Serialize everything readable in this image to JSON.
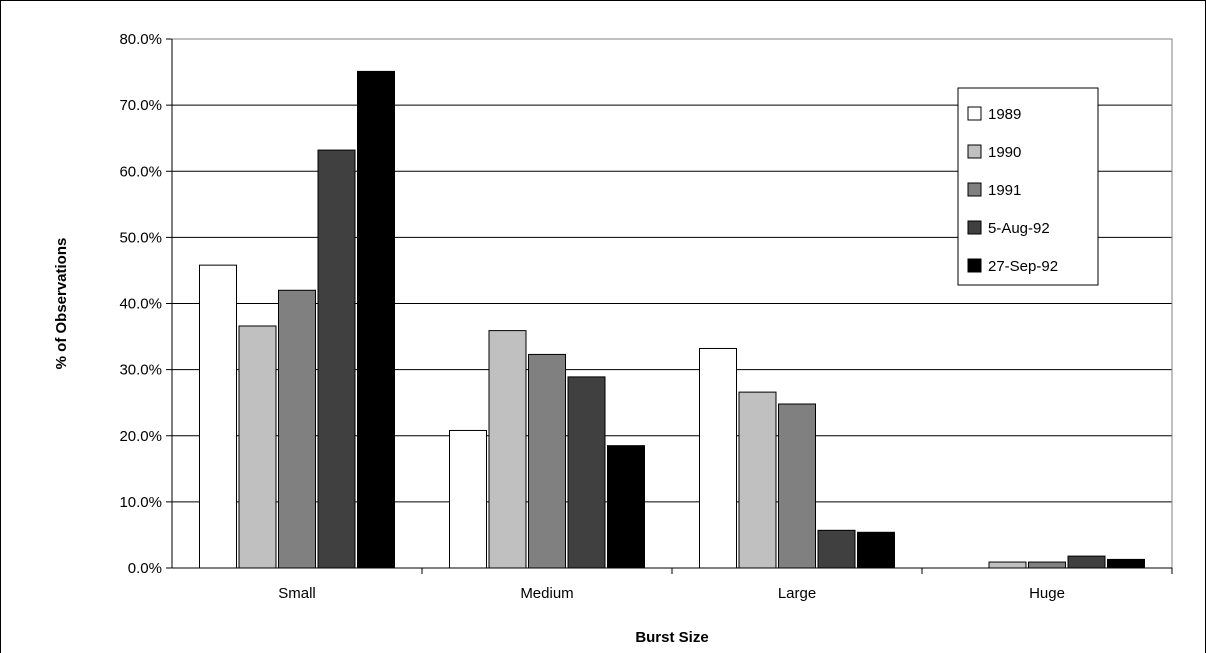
{
  "chart_data": {
    "type": "bar",
    "title": "",
    "xlabel": "Burst Size",
    "ylabel": "% of Observations",
    "categories": [
      "Small",
      "Medium",
      "Large",
      "Huge"
    ],
    "ylim": [
      0,
      80
    ],
    "yticks": [
      "0.0%",
      "10.0%",
      "20.0%",
      "30.0%",
      "40.0%",
      "50.0%",
      "60.0%",
      "70.0%",
      "80.0%"
    ],
    "grid": true,
    "legend_position": "top-right",
    "series": [
      {
        "name": "1989",
        "color": "#ffffff",
        "values": [
          45.8,
          20.8,
          33.2,
          0
        ]
      },
      {
        "name": "1990",
        "color": "#c0c0c0",
        "values": [
          36.6,
          35.9,
          26.6,
          0.9
        ]
      },
      {
        "name": "1991",
        "color": "#808080",
        "values": [
          42.0,
          32.3,
          24.8,
          0.9
        ]
      },
      {
        "name": "5-Aug-92",
        "color": "#404040",
        "values": [
          63.2,
          28.9,
          5.7,
          1.8
        ]
      },
      {
        "name": "27-Sep-92",
        "color": "#000000",
        "values": [
          75.1,
          18.5,
          5.4,
          1.3
        ]
      }
    ]
  }
}
